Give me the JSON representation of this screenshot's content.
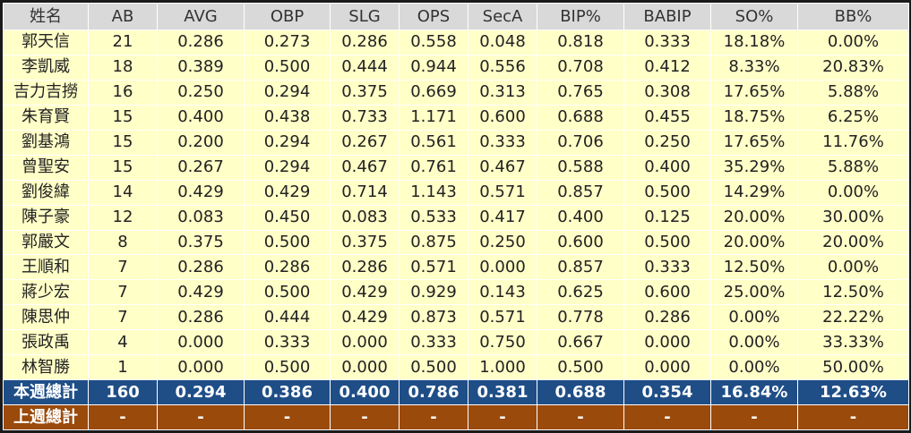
{
  "headers": [
    "姓名",
    "AB",
    "AVG",
    "OBP",
    "SLG",
    "OPS",
    "SecA",
    "BIP%",
    "BABIP",
    "SO%",
    "BB%"
  ],
  "rows": [
    [
      "郭天信",
      "21",
      "0.286",
      "0.273",
      "0.286",
      "0.558",
      "0.048",
      "0.818",
      "0.333",
      "18.18%",
      "0.00%"
    ],
    [
      "李凱威",
      "18",
      "0.389",
      "0.500",
      "0.444",
      "0.944",
      "0.556",
      "0.708",
      "0.412",
      "8.33%",
      "20.83%"
    ],
    [
      "吉力吉撈",
      "16",
      "0.250",
      "0.294",
      "0.375",
      "0.669",
      "0.313",
      "0.765",
      "0.308",
      "17.65%",
      "5.88%"
    ],
    [
      "朱育賢",
      "15",
      "0.400",
      "0.438",
      "0.733",
      "1.171",
      "0.600",
      "0.688",
      "0.455",
      "18.75%",
      "6.25%"
    ],
    [
      "劉基鴻",
      "15",
      "0.200",
      "0.294",
      "0.267",
      "0.561",
      "0.333",
      "0.706",
      "0.250",
      "17.65%",
      "11.76%"
    ],
    [
      "曾聖安",
      "15",
      "0.267",
      "0.294",
      "0.467",
      "0.761",
      "0.467",
      "0.588",
      "0.400",
      "35.29%",
      "5.88%"
    ],
    [
      "劉俊緯",
      "14",
      "0.429",
      "0.429",
      "0.714",
      "1.143",
      "0.571",
      "0.857",
      "0.500",
      "14.29%",
      "0.00%"
    ],
    [
      "陳子豪",
      "12",
      "0.083",
      "0.450",
      "0.083",
      "0.533",
      "0.417",
      "0.400",
      "0.125",
      "20.00%",
      "30.00%"
    ],
    [
      "郭嚴文",
      "8",
      "0.375",
      "0.500",
      "0.375",
      "0.875",
      "0.250",
      "0.600",
      "0.500",
      "20.00%",
      "20.00%"
    ],
    [
      "王順和",
      "7",
      "0.286",
      "0.286",
      "0.286",
      "0.571",
      "0.000",
      "0.857",
      "0.333",
      "12.50%",
      "0.00%"
    ],
    [
      "蔣少宏",
      "7",
      "0.429",
      "0.500",
      "0.429",
      "0.929",
      "0.143",
      "0.625",
      "0.600",
      "25.00%",
      "12.50%"
    ],
    [
      "陳思仲",
      "7",
      "0.286",
      "0.444",
      "0.429",
      "0.873",
      "0.571",
      "0.778",
      "0.286",
      "0.00%",
      "22.22%"
    ],
    [
      "張政禹",
      "4",
      "0.000",
      "0.333",
      "0.000",
      "0.333",
      "0.750",
      "0.667",
      "0.000",
      "0.00%",
      "33.33%"
    ],
    [
      "林智勝",
      "1",
      "0.000",
      "0.500",
      "0.000",
      "0.500",
      "1.000",
      "0.500",
      "0.000",
      "0.00%",
      "50.00%"
    ]
  ],
  "total_this_week": [
    "本週總計",
    "160",
    "0.294",
    "0.386",
    "0.400",
    "0.786",
    "0.381",
    "0.688",
    "0.354",
    "16.84%",
    "12.63%"
  ],
  "total_last_week": [
    "上週總計",
    "-",
    "-",
    "-",
    "-",
    "-",
    "-",
    "-",
    "-",
    "-",
    "-"
  ],
  "colors": {
    "header_bg": "#d9d9d9",
    "row_bg": "#ffffc8",
    "this_week_bg": "#1f4e87",
    "last_week_bg": "#9a4a0b"
  }
}
